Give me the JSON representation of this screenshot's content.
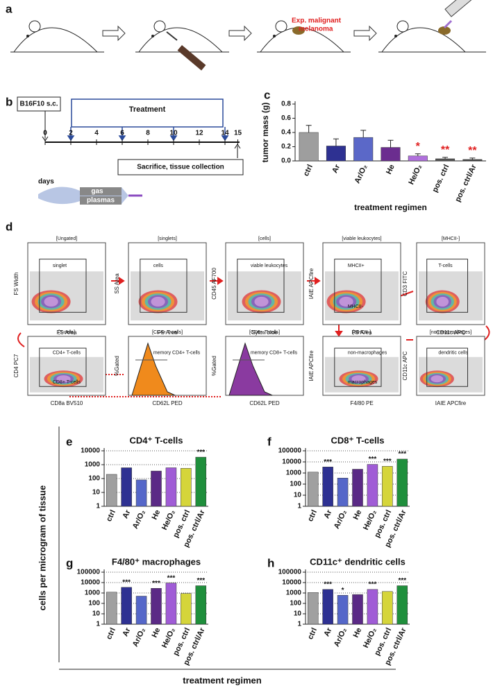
{
  "panel_a": {
    "label": "a",
    "annotation_lines": [
      "Exp. malignant",
      "melanoma"
    ]
  },
  "panel_b": {
    "label": "b",
    "start_box": "B16F10 s.c.",
    "treatment": "Treatment",
    "days": [
      0,
      2,
      4,
      6,
      8,
      10,
      12,
      14,
      15
    ],
    "days_label": "days",
    "end_box": "Sacrifice, tissue collection",
    "jet_labels": [
      "gas",
      "plasmas"
    ]
  },
  "panel_d": {
    "label": "d",
    "plots": [
      {
        "title": "[Ungated]",
        "x_label": "FS Area",
        "y_label": "FS Width",
        "gates": [
          "singlet"
        ]
      },
      {
        "title": "[singlets]",
        "x_label": "FS Area",
        "y_label": "SS Area",
        "gates": [
          "cells"
        ]
      },
      {
        "title": "[cells]",
        "x_label": "Sytox blue",
        "y_label": "CD45 AF700",
        "gates": [
          "viable leukocytes"
        ]
      },
      {
        "title": "[viable leukocytes]",
        "x_label": "FS Area",
        "y_label": "IAIE APCfire",
        "gates": [
          "MHCII+",
          "MHCII-"
        ]
      },
      {
        "title": "[MHCII-]",
        "x_label": "CD11c APC",
        "y_label": "CD3 FITC",
        "gates": [
          "T-cells"
        ]
      },
      {
        "title": "[T-cells]",
        "x_label": "CD8a BV510",
        "y_label": "CD4 PC7",
        "gates": [
          "CD4+ T-cells",
          "CD8+ T-cells"
        ]
      },
      {
        "title": "[CD4+ T-cells]",
        "x_label": "CD62L PED",
        "y_label": "%Gated",
        "gates": [
          "memory CD4+ T-cells"
        ]
      },
      {
        "title": "[CD8+ T-cells]",
        "x_label": "CD62L PED",
        "y_label": "%Gated",
        "gates": [
          "memory CD8+ T-cells"
        ]
      },
      {
        "title": "[MHCII-]",
        "x_label": "F4/80 PE",
        "y_label": "IAIE APCfire",
        "gates": [
          "non-macrophages",
          "macrophages"
        ]
      },
      {
        "title": "[non-macrophages]",
        "x_label": "IAIE APCfire",
        "y_label": "CD11c APC",
        "gates": [
          "dendritic cells"
        ]
      }
    ]
  },
  "shared_y_label": "cells per microgram of tissue",
  "shared_x_label": "treatment regimen",
  "chart_data": [
    {
      "type": "bar",
      "panel": "c",
      "y_label": "tumor mass (g)",
      "x_label": "treatment regimen",
      "categories": [
        "ctrl",
        "Ar",
        "Ar/O₂",
        "He",
        "He/O₂",
        "pos. ctrl",
        "pos. ctrl/Ar"
      ],
      "values": [
        0.4,
        0.21,
        0.33,
        0.19,
        0.07,
        0.03,
        0.02
      ],
      "errors": [
        0.1,
        0.1,
        0.1,
        0.1,
        0.03,
        0.02,
        0.02
      ],
      "colors": [
        "#9e9e9e",
        "#2e3192",
        "#5b68c8",
        "#6b2d8f",
        "#b070dc",
        "#555555",
        "#444444"
      ],
      "significance": [
        null,
        null,
        null,
        null,
        "*",
        "**",
        "**"
      ],
      "significance_color": "#e02020",
      "ylim": [
        0,
        0.8
      ],
      "yticks": [
        {
          "value": 0,
          "label": "0.0"
        },
        {
          "value": 0.2,
          "label": "0.2"
        },
        {
          "value": 0.4,
          "label": "0.4"
        },
        {
          "value": 0.6,
          "label": "0.6"
        },
        {
          "value": 0.8,
          "label": "0.8"
        }
      ],
      "log_scale": false,
      "grid": false
    },
    {
      "type": "bar",
      "panel": "e",
      "title": "CD4⁺ T-cells",
      "categories": [
        "ctrl",
        "Ar",
        "Ar/O₂",
        "He",
        "He/O₂",
        "pos. ctrl",
        "pos. ctrl/Ar"
      ],
      "values": [
        200,
        600,
        80,
        350,
        600,
        550,
        3500
      ],
      "colors": [
        "#a0a0a0",
        "#2e3192",
        "#5567c9",
        "#5b2a86",
        "#a05cd6",
        "#d5d53a",
        "#1f8f3c"
      ],
      "significance": [
        null,
        null,
        null,
        null,
        null,
        null,
        "***"
      ],
      "significance_color": "#111111",
      "ylim": [
        1,
        10000
      ],
      "yticks": [
        1,
        10,
        100,
        1000,
        10000
      ],
      "log_scale": true,
      "grid": true
    },
    {
      "type": "bar",
      "panel": "f",
      "title": "CD8⁺ T-cells",
      "categories": [
        "ctrl",
        "Ar",
        "Ar/O₂",
        "He",
        "He/O₂",
        "pos. ctrl",
        "pos. ctrl/Ar"
      ],
      "values": [
        1200,
        3500,
        350,
        2200,
        6000,
        4000,
        18000
      ],
      "colors": [
        "#a0a0a0",
        "#2e3192",
        "#5567c9",
        "#5b2a86",
        "#a05cd6",
        "#d5d53a",
        "#1f8f3c"
      ],
      "significance": [
        null,
        "***",
        null,
        null,
        "***",
        "***",
        "***"
      ],
      "significance_color": "#111111",
      "ylim": [
        1,
        100000
      ],
      "yticks": [
        1,
        10,
        100,
        1000,
        10000,
        100000
      ],
      "log_scale": true,
      "grid": true
    },
    {
      "type": "bar",
      "panel": "g",
      "title": "F4/80⁺ macrophages",
      "categories": [
        "ctrl",
        "Ar",
        "Ar/O₂",
        "He",
        "He/O₂",
        "pos. ctrl",
        "pos. ctrl/Ar"
      ],
      "values": [
        1200,
        3500,
        500,
        2800,
        9000,
        900,
        5000
      ],
      "colors": [
        "#a0a0a0",
        "#2e3192",
        "#5567c9",
        "#5b2a86",
        "#a05cd6",
        "#d5d53a",
        "#1f8f3c"
      ],
      "significance": [
        null,
        "***",
        null,
        "***",
        "***",
        null,
        "***"
      ],
      "significance_color": "#111111",
      "ylim": [
        1,
        100000
      ],
      "yticks": [
        1,
        10,
        100,
        1000,
        10000,
        100000
      ],
      "log_scale": true,
      "grid": true
    },
    {
      "type": "bar",
      "panel": "h",
      "title": "CD11c⁺ dendritic cells",
      "categories": [
        "ctrl",
        "Ar",
        "Ar/O₂",
        "He",
        "He/O₂",
        "pos. ctrl",
        "pos. ctrl/Ar"
      ],
      "values": [
        1100,
        2200,
        600,
        700,
        2200,
        1400,
        5000
      ],
      "colors": [
        "#a0a0a0",
        "#2e3192",
        "#5567c9",
        "#5b2a86",
        "#a05cd6",
        "#d5d53a",
        "#1f8f3c"
      ],
      "significance": [
        null,
        "***",
        "*",
        null,
        "***",
        null,
        "***"
      ],
      "significance_color": "#111111",
      "ylim": [
        1,
        100000
      ],
      "yticks": [
        1,
        10,
        100,
        1000,
        10000,
        100000
      ],
      "log_scale": true,
      "grid": true
    }
  ]
}
